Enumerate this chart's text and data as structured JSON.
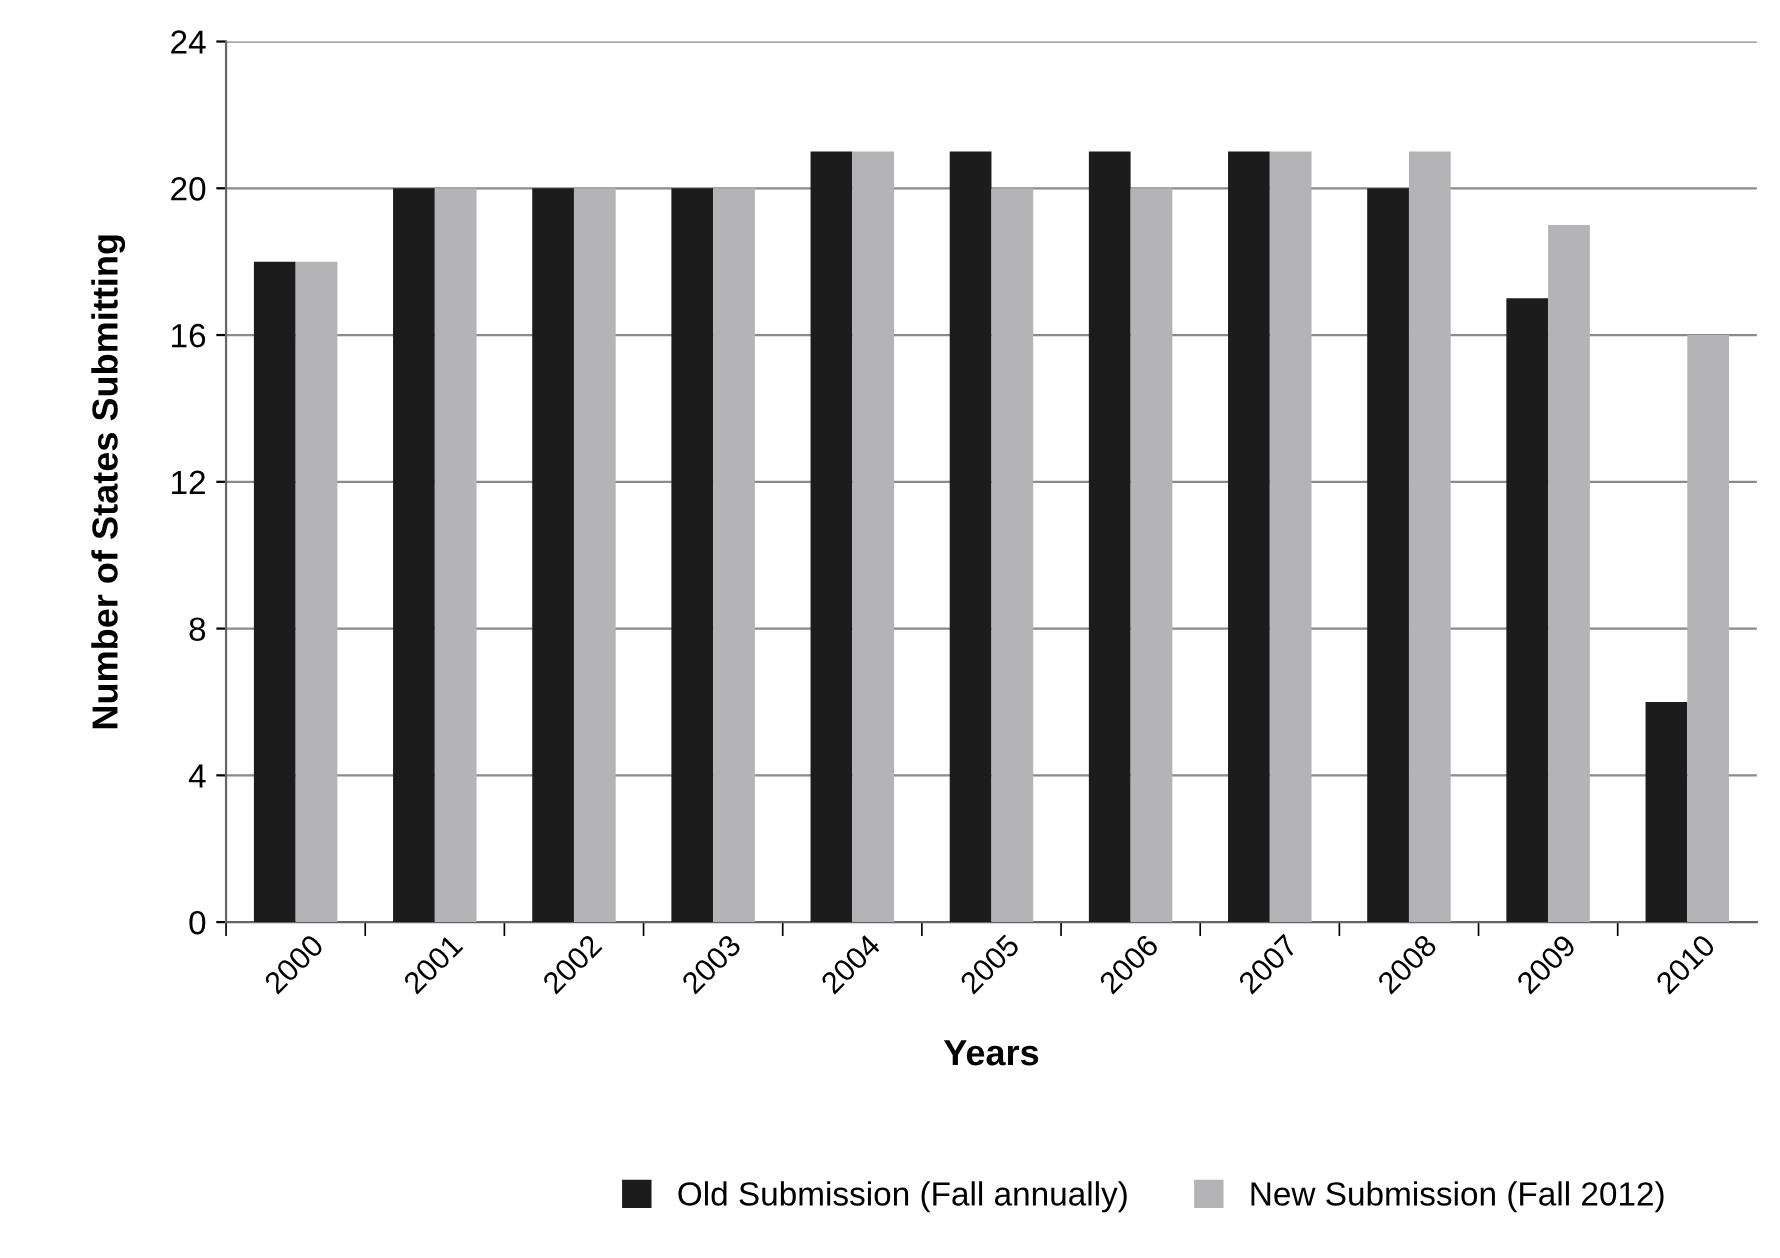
{
  "chart_data": {
    "type": "bar",
    "xlabel": "Years",
    "ylabel": "Number of States Submitting",
    "categories": [
      "2000",
      "2001",
      "2002",
      "2003",
      "2004",
      "2005",
      "2006",
      "2007",
      "2008",
      "2009",
      "2010"
    ],
    "series": [
      {
        "name": "Old Submission (Fall annually)",
        "color": "#1c1c1c",
        "values": [
          18,
          20,
          20,
          20,
          21,
          21,
          21,
          21,
          20,
          17,
          6
        ]
      },
      {
        "name": "New Submission (Fall 2012)",
        "color": "#b4b4b6",
        "values": [
          18,
          20,
          20,
          20,
          21,
          20,
          20,
          21,
          21,
          19,
          16
        ]
      }
    ],
    "ylim": [
      0,
      24
    ],
    "yticks": [
      0,
      4,
      8,
      12,
      16,
      20,
      24
    ],
    "grid": "y",
    "legend": "bottom"
  }
}
